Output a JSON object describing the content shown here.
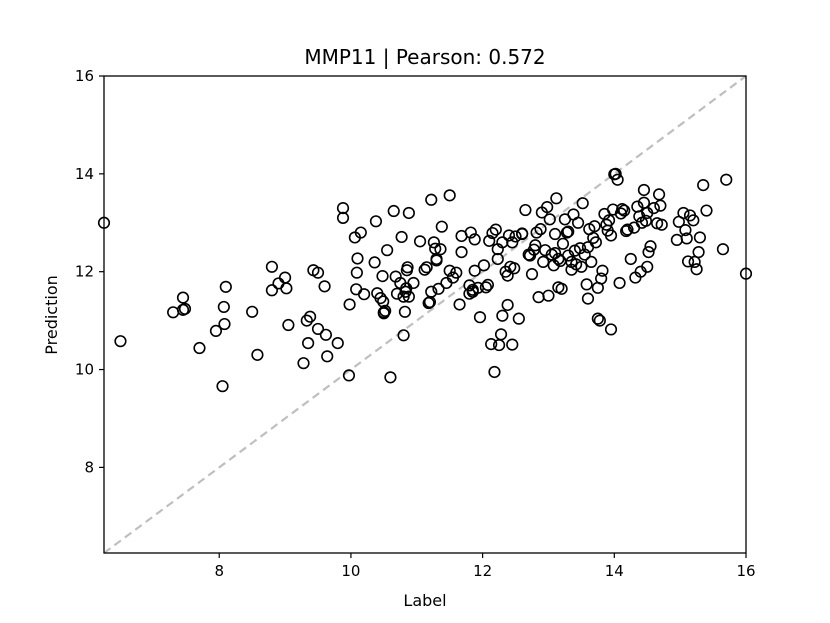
{
  "chart_data": {
    "type": "scatter",
    "title": "MMP11  |  Pearson: 0.572",
    "xlabel": "Label",
    "ylabel": "Prediction",
    "xlim": [
      6.25,
      16.0
    ],
    "ylim": [
      6.25,
      16.0
    ],
    "xticks": [
      8,
      10,
      12,
      14,
      16
    ],
    "yticks": [
      8,
      10,
      12,
      14,
      16
    ],
    "grid": false,
    "marker": "open-circle",
    "marker_color": "#000000",
    "reference_line": {
      "style": "dashed",
      "color": "#bfbfbf",
      "from": [
        6.25,
        6.25
      ],
      "to": [
        16.0,
        16.0
      ]
    },
    "points": [
      [
        6.25,
        13.0
      ],
      [
        6.5,
        10.58
      ],
      [
        7.3,
        11.17
      ],
      [
        7.45,
        11.22
      ],
      [
        7.45,
        11.47
      ],
      [
        7.48,
        11.24
      ],
      [
        7.7,
        10.44
      ],
      [
        7.95,
        10.79
      ],
      [
        8.05,
        9.66
      ],
      [
        8.07,
        11.28
      ],
      [
        8.08,
        10.93
      ],
      [
        8.1,
        11.69
      ],
      [
        8.5,
        11.18
      ],
      [
        8.58,
        10.3
      ],
      [
        8.8,
        12.1
      ],
      [
        8.8,
        11.62
      ],
      [
        8.9,
        11.76
      ],
      [
        9.0,
        11.88
      ],
      [
        9.02,
        11.66
      ],
      [
        9.05,
        10.91
      ],
      [
        9.28,
        10.13
      ],
      [
        9.33,
        11.0
      ],
      [
        9.35,
        10.54
      ],
      [
        9.38,
        11.08
      ],
      [
        9.43,
        12.03
      ],
      [
        9.5,
        10.83
      ],
      [
        9.5,
        11.98
      ],
      [
        9.6,
        11.7
      ],
      [
        9.62,
        10.71
      ],
      [
        9.64,
        10.27
      ],
      [
        9.8,
        10.54
      ],
      [
        9.88,
        13.3
      ],
      [
        9.88,
        13.1
      ],
      [
        9.97,
        9.88
      ],
      [
        9.98,
        11.33
      ],
      [
        10.06,
        12.7
      ],
      [
        10.08,
        11.64
      ],
      [
        10.09,
        11.98
      ],
      [
        10.1,
        12.27
      ],
      [
        10.15,
        12.8
      ],
      [
        10.2,
        11.54
      ],
      [
        10.36,
        12.19
      ],
      [
        10.38,
        13.03
      ],
      [
        10.4,
        11.56
      ],
      [
        10.45,
        11.46
      ],
      [
        10.48,
        11.91
      ],
      [
        10.49,
        11.39
      ],
      [
        10.5,
        11.17
      ],
      [
        10.5,
        11.15
      ],
      [
        10.52,
        11.2
      ],
      [
        10.55,
        12.44
      ],
      [
        10.6,
        9.84
      ],
      [
        10.65,
        13.24
      ],
      [
        10.68,
        11.9
      ],
      [
        10.7,
        11.55
      ],
      [
        10.75,
        11.77
      ],
      [
        10.77,
        12.71
      ],
      [
        10.8,
        11.49
      ],
      [
        10.8,
        10.7
      ],
      [
        10.82,
        11.18
      ],
      [
        10.83,
        11.59
      ],
      [
        10.84,
        11.66
      ],
      [
        10.85,
        12.03
      ],
      [
        10.86,
        12.09
      ],
      [
        10.88,
        11.49
      ],
      [
        10.88,
        13.2
      ],
      [
        10.95,
        11.77
      ],
      [
        11.05,
        12.62
      ],
      [
        11.12,
        12.04
      ],
      [
        11.15,
        12.09
      ],
      [
        11.18,
        11.36
      ],
      [
        11.2,
        11.38
      ],
      [
        11.22,
        11.59
      ],
      [
        11.22,
        13.47
      ],
      [
        11.26,
        12.6
      ],
      [
        11.28,
        12.47
      ],
      [
        11.3,
        12.26
      ],
      [
        11.3,
        12.23
      ],
      [
        11.33,
        11.65
      ],
      [
        11.36,
        12.46
      ],
      [
        11.38,
        12.92
      ],
      [
        11.45,
        11.77
      ],
      [
        11.5,
        13.56
      ],
      [
        11.5,
        12.02
      ],
      [
        11.55,
        11.88
      ],
      [
        11.6,
        11.98
      ],
      [
        11.65,
        11.33
      ],
      [
        11.68,
        12.4
      ],
      [
        11.68,
        12.73
      ],
      [
        11.8,
        11.72
      ],
      [
        11.8,
        11.55
      ],
      [
        11.82,
        12.8
      ],
      [
        11.85,
        11.63
      ],
      [
        11.85,
        11.59
      ],
      [
        11.88,
        12.66
      ],
      [
        11.88,
        12.02
      ],
      [
        11.93,
        11.67
      ],
      [
        11.96,
        11.07
      ],
      [
        12.02,
        12.13
      ],
      [
        12.05,
        11.68
      ],
      [
        12.08,
        11.73
      ],
      [
        12.1,
        12.63
      ],
      [
        12.13,
        10.52
      ],
      [
        12.15,
        12.79
      ],
      [
        12.18,
        9.95
      ],
      [
        12.2,
        12.86
      ],
      [
        12.23,
        12.26
      ],
      [
        12.23,
        12.46
      ],
      [
        12.25,
        10.5
      ],
      [
        12.28,
        10.72
      ],
      [
        12.3,
        11.1
      ],
      [
        12.3,
        12.6
      ],
      [
        12.35,
        12.0
      ],
      [
        12.38,
        11.32
      ],
      [
        12.38,
        11.92
      ],
      [
        12.4,
        12.74
      ],
      [
        12.42,
        12.1
      ],
      [
        12.45,
        12.6
      ],
      [
        12.45,
        10.51
      ],
      [
        12.48,
        12.07
      ],
      [
        12.5,
        12.72
      ],
      [
        12.55,
        11.04
      ],
      [
        12.6,
        12.77
      ],
      [
        12.6,
        12.78
      ],
      [
        12.65,
        13.26
      ],
      [
        12.7,
        12.35
      ],
      [
        12.72,
        12.33
      ],
      [
        12.75,
        11.95
      ],
      [
        12.78,
        12.45
      ],
      [
        12.8,
        12.54
      ],
      [
        12.82,
        12.8
      ],
      [
        12.85,
        11.48
      ],
      [
        12.88,
        12.87
      ],
      [
        12.9,
        13.21
      ],
      [
        12.92,
        12.2
      ],
      [
        12.95,
        12.44
      ],
      [
        12.98,
        13.32
      ],
      [
        13.0,
        11.51
      ],
      [
        13.02,
        13.07
      ],
      [
        13.05,
        12.35
      ],
      [
        13.08,
        12.13
      ],
      [
        13.1,
        12.38
      ],
      [
        13.1,
        12.77
      ],
      [
        13.12,
        13.5
      ],
      [
        13.15,
        12.26
      ],
      [
        13.15,
        11.68
      ],
      [
        13.18,
        12.22
      ],
      [
        13.2,
        11.65
      ],
      [
        13.22,
        12.57
      ],
      [
        13.25,
        13.07
      ],
      [
        13.28,
        12.8
      ],
      [
        13.3,
        12.82
      ],
      [
        13.3,
        12.33
      ],
      [
        13.35,
        12.2
      ],
      [
        13.35,
        12.04
      ],
      [
        13.38,
        13.17
      ],
      [
        13.4,
        12.43
      ],
      [
        13.42,
        12.15
      ],
      [
        13.45,
        13.0
      ],
      [
        13.48,
        12.48
      ],
      [
        13.5,
        12.1
      ],
      [
        13.52,
        13.4
      ],
      [
        13.55,
        12.35
      ],
      [
        13.58,
        11.74
      ],
      [
        13.6,
        11.45
      ],
      [
        13.6,
        12.5
      ],
      [
        13.62,
        12.87
      ],
      [
        13.65,
        12.2
      ],
      [
        13.68,
        12.69
      ],
      [
        13.7,
        12.93
      ],
      [
        13.72,
        12.6
      ],
      [
        13.75,
        11.67
      ],
      [
        13.75,
        11.04
      ],
      [
        13.78,
        11.0
      ],
      [
        13.8,
        11.86
      ],
      [
        13.82,
        12.02
      ],
      [
        13.85,
        13.18
      ],
      [
        13.88,
        12.96
      ],
      [
        13.9,
        12.84
      ],
      [
        13.92,
        13.05
      ],
      [
        13.95,
        10.82
      ],
      [
        13.95,
        12.74
      ],
      [
        13.98,
        13.27
      ],
      [
        14.0,
        13.99
      ],
      [
        14.02,
        14.0
      ],
      [
        14.05,
        13.88
      ],
      [
        14.08,
        11.77
      ],
      [
        14.1,
        13.19
      ],
      [
        14.12,
        13.28
      ],
      [
        14.15,
        13.25
      ],
      [
        14.18,
        12.83
      ],
      [
        14.2,
        12.86
      ],
      [
        14.25,
        12.26
      ],
      [
        14.3,
        12.9
      ],
      [
        14.32,
        11.88
      ],
      [
        14.35,
        13.33
      ],
      [
        14.38,
        13.13
      ],
      [
        14.4,
        12.0
      ],
      [
        14.42,
        13.0
      ],
      [
        14.45,
        13.67
      ],
      [
        14.45,
        13.41
      ],
      [
        14.48,
        13.04
      ],
      [
        14.5,
        12.1
      ],
      [
        14.5,
        13.2
      ],
      [
        14.52,
        12.4
      ],
      [
        14.55,
        12.52
      ],
      [
        14.6,
        13.3
      ],
      [
        14.65,
        12.99
      ],
      [
        14.68,
        13.58
      ],
      [
        14.7,
        13.35
      ],
      [
        14.72,
        12.96
      ],
      [
        14.95,
        12.65
      ],
      [
        14.98,
        13.02
      ],
      [
        15.05,
        13.2
      ],
      [
        15.08,
        12.85
      ],
      [
        15.1,
        12.68
      ],
      [
        15.12,
        12.21
      ],
      [
        15.15,
        13.15
      ],
      [
        15.2,
        13.05
      ],
      [
        15.22,
        12.2
      ],
      [
        15.25,
        12.05
      ],
      [
        15.28,
        12.4
      ],
      [
        15.3,
        12.7
      ],
      [
        15.35,
        13.77
      ],
      [
        15.4,
        13.25
      ],
      [
        15.65,
        12.46
      ],
      [
        15.7,
        13.88
      ],
      [
        16.0,
        11.96
      ]
    ]
  }
}
